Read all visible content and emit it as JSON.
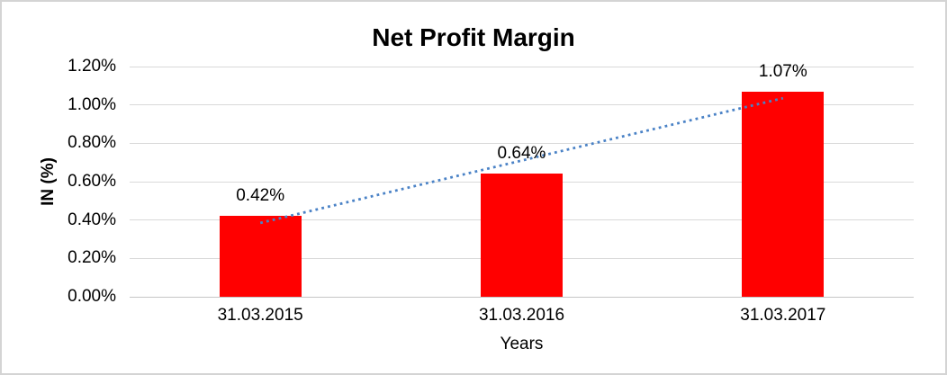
{
  "chart_data": {
    "type": "bar",
    "title": "Net Profit Margin",
    "ylabel": "IN (%)",
    "xlabel": "Years",
    "categories": [
      "31.03.2015",
      "31.03.2016",
      "31.03.2017"
    ],
    "values": [
      0.42,
      0.64,
      1.07
    ],
    "data_labels": [
      "0.42%",
      "0.64%",
      "1.07%"
    ],
    "yticks": [
      "0.00%",
      "0.20%",
      "0.40%",
      "0.60%",
      "0.80%",
      "1.00%",
      "1.20%"
    ],
    "ylim": [
      0,
      1.2
    ],
    "grid": true,
    "legend": false,
    "bar_color": "#FF0000",
    "gridline_color": "#D9D9D9",
    "axis_line_color": "#C6C6C6",
    "text_color": "#000000",
    "trendline": {
      "type": "linear",
      "style": "dotted",
      "color": "#4A82C6"
    }
  }
}
